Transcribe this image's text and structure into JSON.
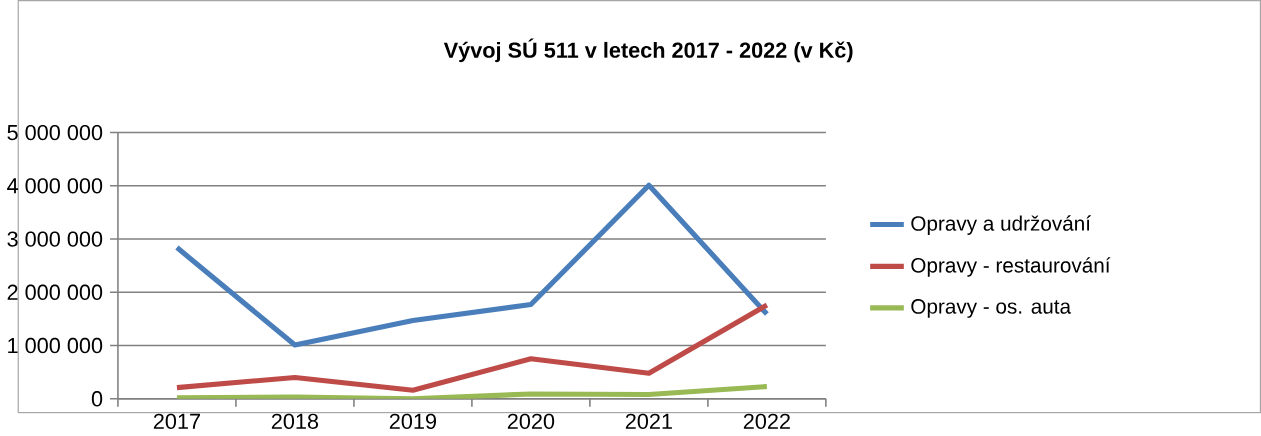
{
  "chart_data": {
    "type": "line",
    "title": "Vývoj SÚ 511 v letech 2017 - 2022 (v Kč)",
    "categories": [
      "2017",
      "2018",
      "2019",
      "2020",
      "2021",
      "2022"
    ],
    "series": [
      {
        "name": "Opravy a udržování",
        "color": "#4a7ebb",
        "values": [
          2840000,
          1010000,
          1470000,
          1770000,
          4010000,
          1590000
        ]
      },
      {
        "name": "Opravy - restaurování",
        "color": "#be4b48",
        "values": [
          210000,
          400000,
          160000,
          750000,
          480000,
          1760000
        ]
      },
      {
        "name": "Opravy - os. auta",
        "color": "#98b954",
        "values": [
          20000,
          30000,
          0,
          90000,
          80000,
          230000
        ]
      }
    ],
    "ylim": [
      0,
      5000000
    ],
    "yticks": [
      {
        "value": 0,
        "label": "0"
      },
      {
        "value": 1000000,
        "label": "1 000 000"
      },
      {
        "value": 2000000,
        "label": "2 000 000"
      },
      {
        "value": 3000000,
        "label": "3 000 000"
      },
      {
        "value": 4000000,
        "label": "4 000 000"
      },
      {
        "value": 5000000,
        "label": "5 000 000"
      }
    ],
    "grid": "y",
    "legend": "right",
    "marker": "none",
    "line_style": "solid"
  }
}
